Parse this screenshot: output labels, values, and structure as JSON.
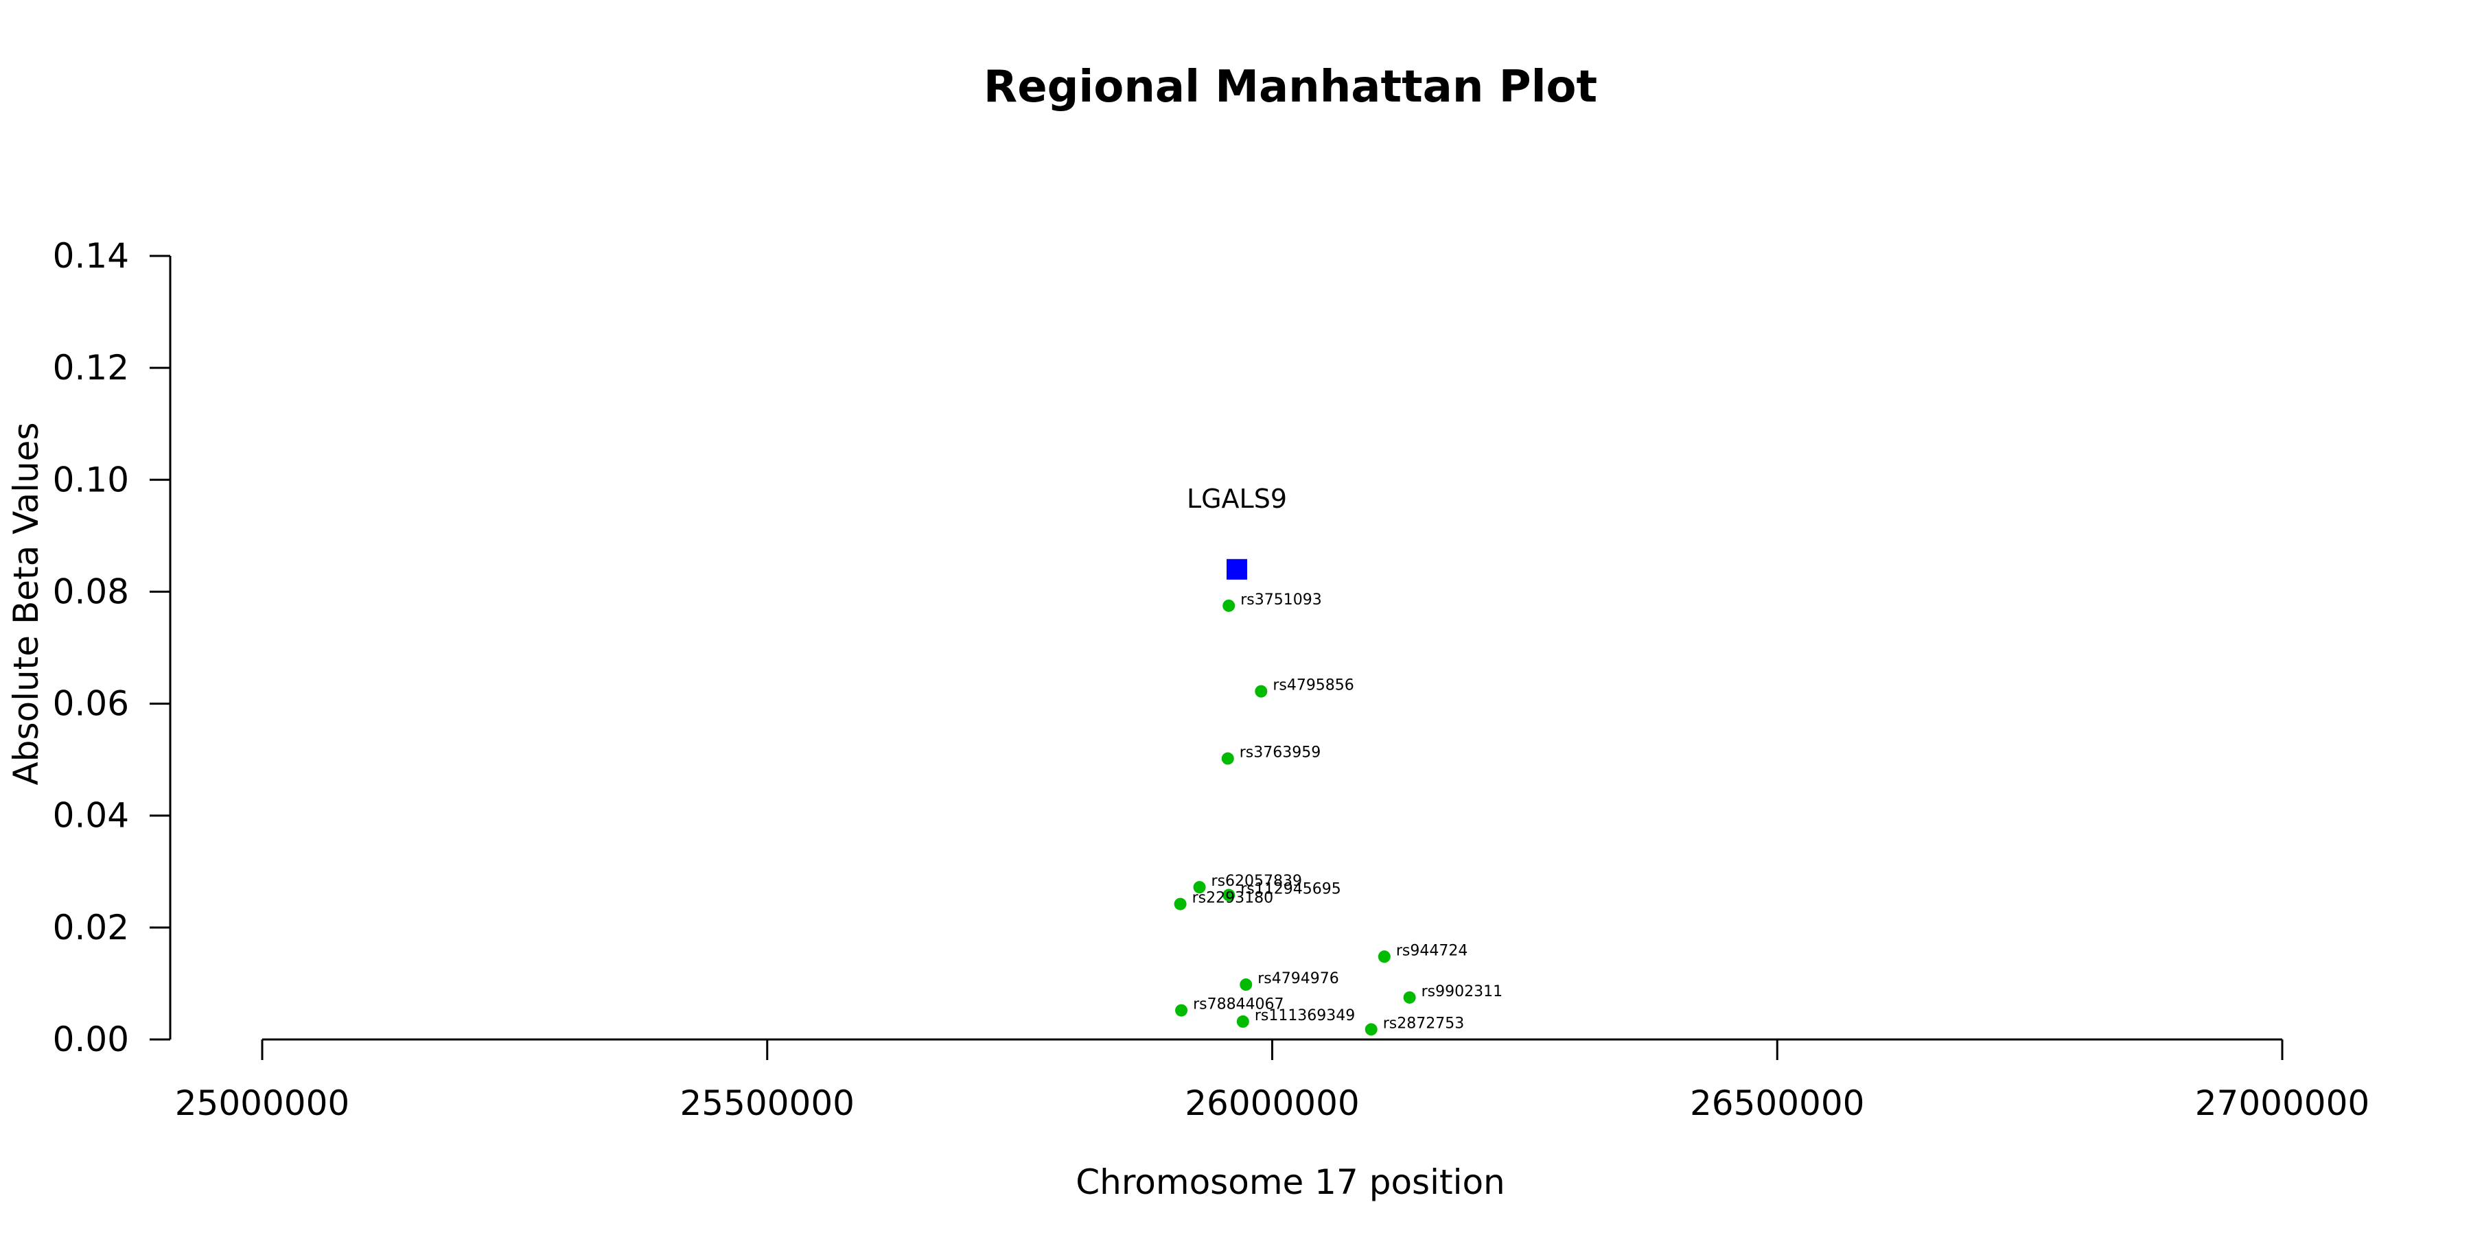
{
  "chart_data": {
    "type": "scatter",
    "title": "Regional Manhattan Plot",
    "xlabel": "Chromosome 17 position",
    "ylabel": "Absolute Beta Values",
    "xlim": [
      25000000,
      27000000
    ],
    "ylim": [
      0,
      0.14
    ],
    "x_ticks": [
      25000000,
      25500000,
      26000000,
      26500000,
      27000000
    ],
    "x_tick_labels": [
      "25000000",
      "25500000",
      "26000000",
      "26500000",
      "27000000"
    ],
    "y_ticks": [
      0,
      0.02,
      0.04,
      0.06,
      0.08,
      0.1,
      0.12,
      0.14
    ],
    "y_tick_labels": [
      "0.00",
      "0.02",
      "0.04",
      "0.06",
      "0.08",
      "0.10",
      "0.12",
      "0.14"
    ],
    "grid": false,
    "gene": {
      "label": "LGALS9",
      "x": 25965000,
      "y": 0.084,
      "color": "#0000ff",
      "marker": "square"
    },
    "snp_color": "#00bb00",
    "snps": [
      {
        "label": "rs3751093",
        "x": 25957000,
        "y": 0.0775
      },
      {
        "label": "rs4795856",
        "x": 25989000,
        "y": 0.0622
      },
      {
        "label": "rs3763959",
        "x": 25956000,
        "y": 0.0502
      },
      {
        "label": "rs62057839",
        "x": 25928000,
        "y": 0.0272
      },
      {
        "label": "rs112945695",
        "x": 25957000,
        "y": 0.0258
      },
      {
        "label": "rs2293180",
        "x": 25909000,
        "y": 0.0242
      },
      {
        "label": "rs944724",
        "x": 26111000,
        "y": 0.0148
      },
      {
        "label": "rs4794976",
        "x": 25974000,
        "y": 0.0098
      },
      {
        "label": "rs9902311",
        "x": 26136000,
        "y": 0.0075
      },
      {
        "label": "rs78844067",
        "x": 25910000,
        "y": 0.0052
      },
      {
        "label": "rs111369349",
        "x": 25971000,
        "y": 0.0032
      },
      {
        "label": "rs2872753",
        "x": 26098000,
        "y": 0.0018
      }
    ]
  }
}
